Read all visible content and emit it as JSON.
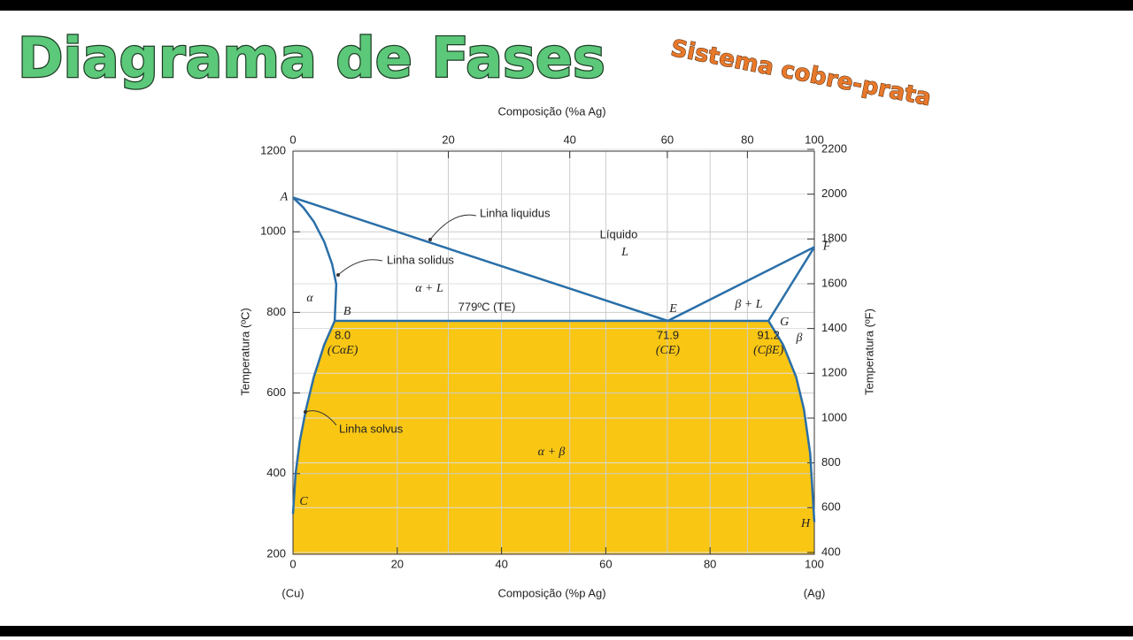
{
  "title": "Diagrama de Fases",
  "subtitle": "Sistema cobre-prata",
  "chart_data": {
    "type": "phase-diagram",
    "x_label": "Composição (%p Ag)",
    "x2_label": "Composição (%a Ag)",
    "y_label": "Temperatura (ºC)",
    "y2_label": "Temperatura (ºF)",
    "x_left_label": "(Cu)",
    "x_right_label": "(Ag)",
    "xlim": [
      0,
      100
    ],
    "xticks": [
      0,
      20,
      40,
      60,
      80,
      100
    ],
    "x2ticks": [
      0,
      20,
      40,
      60,
      80,
      100
    ],
    "ylim": [
      200,
      1200
    ],
    "yticks": [
      200,
      400,
      600,
      800,
      1000,
      1200
    ],
    "y2lim": [
      392,
      2192
    ],
    "y2ticks": [
      400,
      600,
      800,
      1000,
      1200,
      1400,
      1600,
      1800,
      2000,
      2200
    ],
    "grid": true,
    "line_color": "#2a6fa8",
    "region_color": "#f9c614",
    "curves": [
      {
        "x": [
          0,
          71.9,
          100
        ],
        "y": [
          1085,
          779,
          962
        ]
      },
      {
        "x": [
          0,
          2,
          4,
          6,
          7.5,
          8.3,
          8
        ],
        "y": [
          1085,
          1060,
          1025,
          975,
          920,
          870,
          779
        ]
      },
      {
        "x": [
          8,
          6,
          4,
          2.5,
          1.3,
          0.5,
          0
        ],
        "y": [
          779,
          720,
          640,
          560,
          480,
          400,
          300
        ]
      },
      {
        "x": [
          91.2,
          100
        ],
        "y": [
          779,
          962
        ]
      },
      {
        "x": [
          91.2,
          94,
          96.5,
          98,
          99.2,
          100
        ],
        "y": [
          779,
          720,
          640,
          560,
          450,
          280
        ]
      },
      {
        "x": [
          8,
          91.2
        ],
        "y": [
          779,
          779
        ]
      }
    ],
    "points": [
      {
        "label": "A",
        "x": 0,
        "y": 1085
      },
      {
        "label": "B",
        "x": 8,
        "y": 779
      },
      {
        "label": "C",
        "x": 0,
        "y": 330
      },
      {
        "label": "E",
        "x": 71.9,
        "y": 779
      },
      {
        "label": "F",
        "x": 100,
        "y": 962
      },
      {
        "label": "G",
        "x": 91.2,
        "y": 779
      },
      {
        "label": "H",
        "x": 100,
        "y": 275
      }
    ],
    "eutectic_label": "779ºC (TE)",
    "compositions": {
      "values": [
        8.0,
        71.9,
        91.2
      ],
      "value_labels": [
        "8.0",
        "71.9",
        "91.2"
      ],
      "symbols": [
        "(CαE)",
        "(CE)",
        "(CβE)"
      ]
    },
    "region_labels": [
      "Líquido",
      "L",
      "α",
      "α + L",
      "β + L",
      "β",
      "α + β"
    ],
    "annotations": [
      "Linha liquidus",
      "Linha solidus",
      "Linha solvus"
    ]
  }
}
